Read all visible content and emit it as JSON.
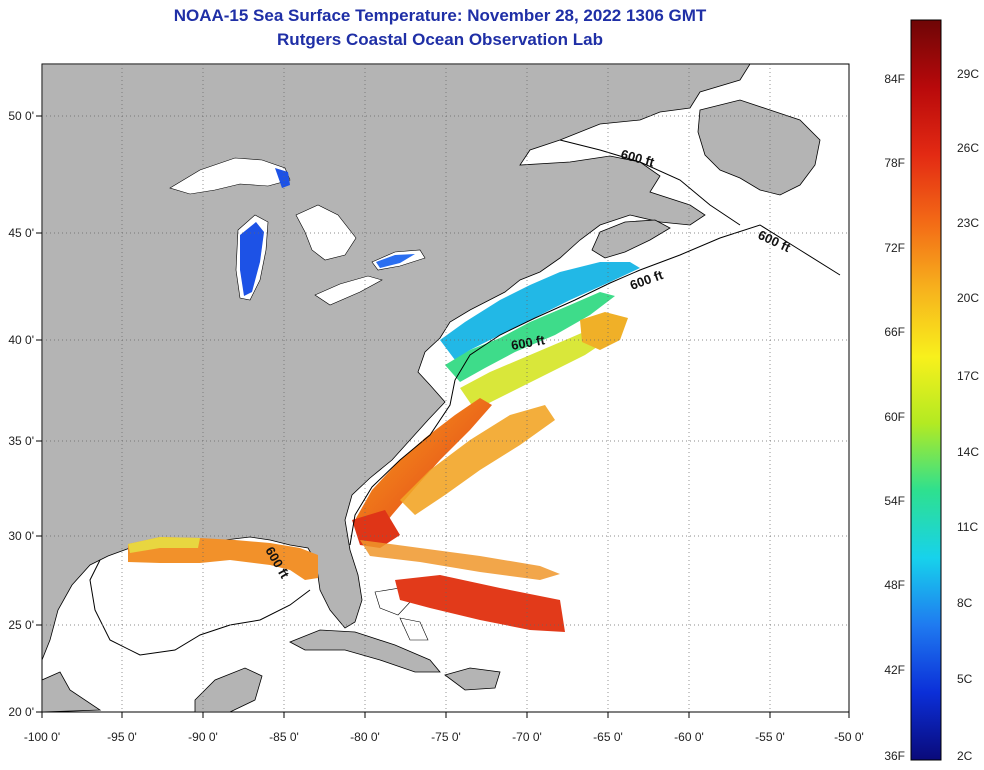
{
  "header": {
    "title": "NOAA-15 Sea Surface Temperature:  November 28, 2022 1306 GMT",
    "subtitle": "Rutgers Coastal Ocean Observation Lab"
  },
  "map": {
    "lon_ticks": [
      "-100 0'",
      "-95 0'",
      "-90 0'",
      "-85 0'",
      "-80 0'",
      "-75 0'",
      "-70 0'",
      "-65 0'",
      "-60 0'",
      "-55 0'",
      "-50 0'"
    ],
    "lat_ticks": [
      "50 0'",
      "45 0'",
      "40 0'",
      "35 0'",
      "30 0'",
      "25 0'",
      "20 0'"
    ],
    "contour_label": "600 ft",
    "colors": {
      "land": "#b4b4b4",
      "ocean_nodata": "#ffffff",
      "coast": "#000000"
    }
  },
  "colorbar": {
    "fahrenheit": [
      "84F",
      "78F",
      "72F",
      "66F",
      "60F",
      "54F",
      "48F",
      "42F",
      "36F"
    ],
    "celsius": [
      "29C",
      "26C",
      "23C",
      "20C",
      "17C",
      "14C",
      "11C",
      "8C",
      "5C",
      "2C"
    ],
    "stops": [
      "#0a0a7a",
      "#0b2fd8",
      "#1f7af0",
      "#17d2ec",
      "#2ee08f",
      "#b3ea22",
      "#f8f01c",
      "#f7b21d",
      "#f36a16",
      "#e32a13",
      "#b8090b",
      "#6e0606"
    ]
  }
}
